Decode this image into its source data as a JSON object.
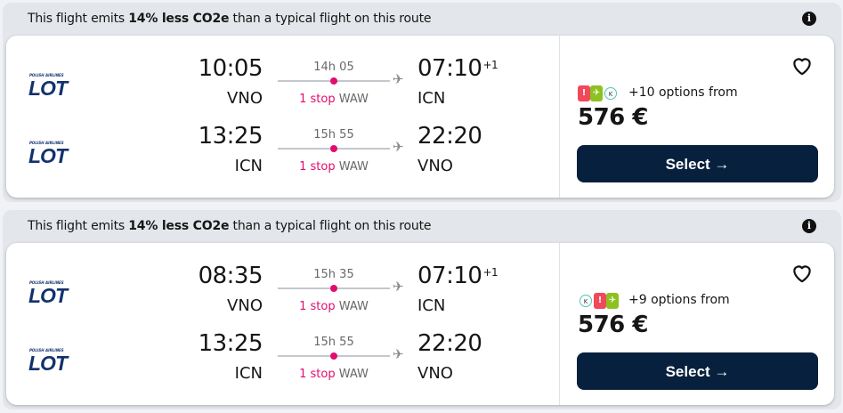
{
  "results": [
    {
      "eco": {
        "prefix": "This flight emits ",
        "bold": "14% less CO2e",
        "suffix": " than a typical flight on this route"
      },
      "legs": [
        {
          "airline_small": "POLISH AIRLINES",
          "airline": "LOT",
          "dep_time": "10:05",
          "dep_code": "VNO",
          "duration": "14h 05",
          "stops": "1 stop",
          "via": "WAW",
          "arr_time": "07:10",
          "day_offset": "+1",
          "arr_code": "ICN"
        },
        {
          "airline_small": "POLISH AIRLINES",
          "airline": "LOT",
          "dep_time": "13:25",
          "dep_code": "ICN",
          "duration": "15h 55",
          "stops": "1 stop",
          "via": "WAW",
          "arr_time": "22:20",
          "day_offset": "",
          "arr_code": "VNO"
        }
      ],
      "providers": [
        "red-provider-icon",
        "green-plane-provider-icon",
        "kiwi-k-provider-icon"
      ],
      "options": "+10 options from",
      "price": "576 €",
      "select": "Select →"
    },
    {
      "eco": {
        "prefix": "This flight emits ",
        "bold": "14% less CO2e",
        "suffix": " than a typical flight on this route"
      },
      "legs": [
        {
          "airline_small": "POLISH AIRLINES",
          "airline": "LOT",
          "dep_time": "08:35",
          "dep_code": "VNO",
          "duration": "15h 35",
          "stops": "1 stop",
          "via": "WAW",
          "arr_time": "07:10",
          "day_offset": "+1",
          "arr_code": "ICN"
        },
        {
          "airline_small": "POLISH AIRLINES",
          "airline": "LOT",
          "dep_time": "13:25",
          "dep_code": "ICN",
          "duration": "15h 55",
          "stops": "1 stop",
          "via": "WAW",
          "arr_time": "22:20",
          "day_offset": "",
          "arr_code": "VNO"
        }
      ],
      "providers": [
        "kiwi-k-provider-icon",
        "red-provider-icon",
        "green-plane-provider-icon"
      ],
      "options": "+9 options from",
      "price": "576 €",
      "select": "Select →"
    }
  ],
  "colors": {
    "accent": "#e20c6d",
    "button": "#07203d",
    "airline": "#12316e",
    "header_bg": "#e3e6ea"
  }
}
